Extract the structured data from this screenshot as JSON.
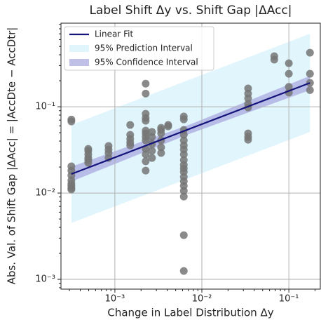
{
  "chart_data": {
    "type": "scatter",
    "title": "Label Shift Δy vs. Shift Gap |ΔAcc|",
    "x_label": "Change in Label Distribution Δy",
    "y_label": "Abs. Val. of Shift Gap |ΔAcc| = |AccDte − AccDtr|",
    "x_log": true,
    "y_log": true,
    "grid": true,
    "legend_position": "upper left",
    "xlim": [
      0.00024,
      0.23
    ],
    "ylim": [
      0.00077,
      0.93
    ],
    "xticks": [
      {
        "value": 0.001,
        "label": "10⁻³"
      },
      {
        "value": 0.01,
        "label": "10⁻²"
      },
      {
        "value": 0.1,
        "label": "10⁻¹"
      }
    ],
    "yticks": [
      {
        "value": 0.001,
        "label": "10⁻³"
      },
      {
        "value": 0.01,
        "label": "10⁻²"
      },
      {
        "value": 0.1,
        "label": "10⁻¹"
      }
    ],
    "bands": [
      {
        "name": "95% Prediction Interval",
        "color": "#e1f5fd",
        "x": [
          0.000316,
          0.0074,
          0.175
        ],
        "lower": [
          0.0045,
          0.0151,
          0.051
        ],
        "upper": [
          0.0615,
          0.208,
          0.7
        ]
      },
      {
        "name": "95% Confidence Interval",
        "color": "#aaaae0",
        "x": [
          0.000316,
          0.0074,
          0.175
        ],
        "lower": [
          0.0136,
          0.049,
          0.156
        ],
        "upper": [
          0.0202,
          0.0626,
          0.228
        ]
      }
    ],
    "points": {
      "color": "#767676",
      "x": [
        0.000316,
        0.000316,
        0.000316,
        0.000316,
        0.000316,
        0.000316,
        0.000316,
        0.000316,
        0.000316,
        0.000316,
        0.000494,
        0.000494,
        0.000494,
        0.000494,
        0.000494,
        0.000494,
        0.000846,
        0.000846,
        0.000846,
        0.000846,
        0.0015,
        0.0015,
        0.0015,
        0.0015,
        0.0015,
        0.00226,
        0.00226,
        0.00226,
        0.00226,
        0.00226,
        0.00226,
        0.00226,
        0.00226,
        0.00226,
        0.00226,
        0.00226,
        0.00226,
        0.00226,
        0.00267,
        0.00267,
        0.00267,
        0.00267,
        0.00267,
        0.0034,
        0.0034,
        0.0034,
        0.0034,
        0.0034,
        0.0034,
        0.0041,
        0.0041,
        0.0062,
        0.0062,
        0.0062,
        0.0062,
        0.0062,
        0.0062,
        0.0062,
        0.0062,
        0.0062,
        0.0062,
        0.0062,
        0.0062,
        0.0062,
        0.0062,
        0.0062,
        0.0062,
        0.0062,
        0.0062,
        0.0062,
        0.034,
        0.034,
        0.034,
        0.034,
        0.034,
        0.034,
        0.034,
        0.034,
        0.068,
        0.068,
        0.1,
        0.1,
        0.1,
        0.1,
        0.175,
        0.175,
        0.175,
        0.175
      ],
      "values": [
        0.071,
        0.0675,
        0.0204,
        0.0182,
        0.016,
        0.014,
        0.0128,
        0.0121,
        0.0114,
        0.011,
        0.0325,
        0.0308,
        0.028,
        0.0255,
        0.0241,
        0.0224,
        0.0351,
        0.0319,
        0.0291,
        0.0255,
        0.0615,
        0.0473,
        0.0423,
        0.0385,
        0.0357,
        0.185,
        0.142,
        0.0829,
        0.0741,
        0.0688,
        0.0529,
        0.0491,
        0.0447,
        0.0407,
        0.0325,
        0.028,
        0.0233,
        0.0182,
        0.051,
        0.0447,
        0.0371,
        0.0308,
        0.0255,
        0.057,
        0.0539,
        0.0491,
        0.0407,
        0.0338,
        0.0291,
        0.0615,
        0.0592,
        0.077,
        0.0714,
        0.0539,
        0.0473,
        0.0407,
        0.0357,
        0.0319,
        0.028,
        0.0241,
        0.0212,
        0.0193,
        0.0176,
        0.0154,
        0.0137,
        0.0121,
        0.0106,
        0.0091,
        0.00325,
        0.00125,
        0.163,
        0.142,
        0.125,
        0.108,
        0.098,
        0.0491,
        0.0447,
        0.0415,
        0.385,
        0.351,
        0.319,
        0.241,
        0.17,
        0.146,
        0.423,
        0.241,
        0.189,
        0.156
      ]
    },
    "fit": {
      "name": "Linear Fit",
      "color": "#14147a",
      "x": [
        0.000316,
        0.175
      ],
      "values": [
        0.0166,
        0.189
      ]
    }
  }
}
